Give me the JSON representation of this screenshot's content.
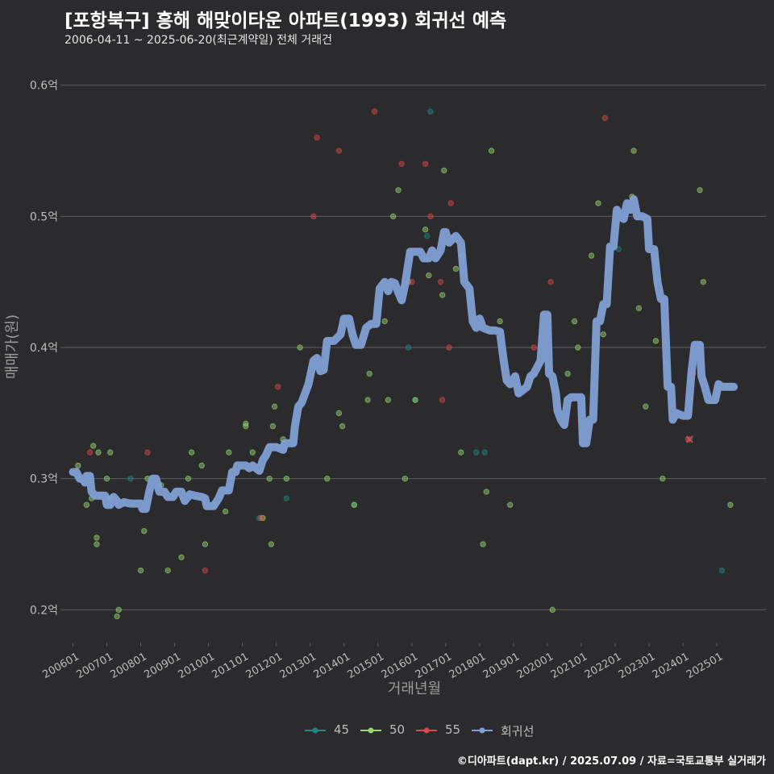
{
  "title": "[포항북구] 흥해 해맞이타운 아파트(1993) 회귀선 예측",
  "subtitle": "2006-04-11 ~ 2025-06-20(최근계약일) 전체 거래건",
  "footer": "©디아파트(dapt.kr) / 2025.07.09 / 자료=국토교통부 실거래가",
  "colors": {
    "s45": "#1f8a82",
    "s50": "#9bd86e",
    "s55": "#e0474c",
    "trend": "#7f9fd4",
    "grid": "#5c5c5c",
    "text": "#bdbdbd"
  },
  "chart_data": {
    "type": "scatter",
    "xlabel": "거래년월",
    "ylabel": "매매가(원)",
    "x_unit": "year (decimal)",
    "xlim": [
      2005.75,
      2026.45
    ],
    "ylim": [
      0.175,
      0.625
    ],
    "yticks": [
      {
        "value": 0.2,
        "label": "0.2억"
      },
      {
        "value": 0.3,
        "label": "0.3억"
      },
      {
        "value": 0.4,
        "label": "0.4억"
      },
      {
        "value": 0.5,
        "label": "0.5억"
      },
      {
        "value": 0.6,
        "label": "0.6억"
      }
    ],
    "xticks": [
      {
        "value": 2006.0,
        "label": "200601"
      },
      {
        "value": 2007.0,
        "label": "200701"
      },
      {
        "value": 2008.0,
        "label": "200801"
      },
      {
        "value": 2009.0,
        "label": "200901"
      },
      {
        "value": 2010.0,
        "label": "201001"
      },
      {
        "value": 2011.0,
        "label": "201101"
      },
      {
        "value": 2012.0,
        "label": "201201"
      },
      {
        "value": 2013.0,
        "label": "201301"
      },
      {
        "value": 2014.0,
        "label": "201401"
      },
      {
        "value": 2015.0,
        "label": "201501"
      },
      {
        "value": 2016.0,
        "label": "201601"
      },
      {
        "value": 2017.0,
        "label": "201701"
      },
      {
        "value": 2018.0,
        "label": "201801"
      },
      {
        "value": 2019.0,
        "label": "201901"
      },
      {
        "value": 2020.0,
        "label": "202001"
      },
      {
        "value": 2021.0,
        "label": "202101"
      },
      {
        "value": 2022.0,
        "label": "202201"
      },
      {
        "value": 2023.0,
        "label": "202301"
      },
      {
        "value": 2024.0,
        "label": "202401"
      },
      {
        "value": 2025.0,
        "label": "202501"
      }
    ],
    "legend": [
      "45",
      "50",
      "55",
      "회귀선"
    ],
    "legend_position": "bottom",
    "series": [
      {
        "name": "45",
        "points": [
          [
            2007.7,
            0.3
          ],
          [
            2011.5,
            0.27
          ],
          [
            2012.3,
            0.285
          ],
          [
            2014.3,
            0.28
          ],
          [
            2015.9,
            0.4
          ],
          [
            2016.1,
            0.36
          ],
          [
            2016.45,
            0.485
          ],
          [
            2016.55,
            0.58
          ],
          [
            2017.9,
            0.32
          ],
          [
            2018.15,
            0.32
          ],
          [
            2022.1,
            0.475
          ],
          [
            2024.2,
            0.33
          ],
          [
            2025.15,
            0.23
          ]
        ]
      },
      {
        "name": "50",
        "points": [
          [
            2006.15,
            0.31
          ],
          [
            2006.4,
            0.28
          ],
          [
            2006.55,
            0.285
          ],
          [
            2006.6,
            0.325
          ],
          [
            2006.7,
            0.25
          ],
          [
            2006.7,
            0.255
          ],
          [
            2006.75,
            0.32
          ],
          [
            2007.0,
            0.3
          ],
          [
            2007.1,
            0.32
          ],
          [
            2007.3,
            0.195
          ],
          [
            2007.35,
            0.2
          ],
          [
            2007.1,
            0.285
          ],
          [
            2008.0,
            0.23
          ],
          [
            2008.1,
            0.26
          ],
          [
            2008.2,
            0.3
          ],
          [
            2008.6,
            0.295
          ],
          [
            2008.8,
            0.23
          ],
          [
            2009.2,
            0.24
          ],
          [
            2009.4,
            0.3
          ],
          [
            2009.5,
            0.32
          ],
          [
            2009.8,
            0.31
          ],
          [
            2009.9,
            0.25
          ],
          [
            2010.2,
            0.28
          ],
          [
            2010.5,
            0.275
          ],
          [
            2010.6,
            0.32
          ],
          [
            2011.1,
            0.34
          ],
          [
            2011.1,
            0.342
          ],
          [
            2011.3,
            0.32
          ],
          [
            2011.6,
            0.27
          ],
          [
            2011.8,
            0.3
          ],
          [
            2011.85,
            0.25
          ],
          [
            2011.9,
            0.34
          ],
          [
            2011.95,
            0.355
          ],
          [
            2012.2,
            0.33
          ],
          [
            2012.3,
            0.3
          ],
          [
            2012.7,
            0.4
          ],
          [
            2013.5,
            0.3
          ],
          [
            2013.85,
            0.35
          ],
          [
            2013.95,
            0.34
          ],
          [
            2014.3,
            0.28
          ],
          [
            2014.7,
            0.36
          ],
          [
            2014.75,
            0.38
          ],
          [
            2015.2,
            0.42
          ],
          [
            2015.3,
            0.36
          ],
          [
            2015.45,
            0.5
          ],
          [
            2015.6,
            0.52
          ],
          [
            2015.8,
            0.3
          ],
          [
            2015.9,
            0.45
          ],
          [
            2016.1,
            0.36
          ],
          [
            2016.4,
            0.49
          ],
          [
            2016.5,
            0.455
          ],
          [
            2016.9,
            0.44
          ],
          [
            2016.95,
            0.535
          ],
          [
            2017.3,
            0.46
          ],
          [
            2017.5,
            0.47
          ],
          [
            2017.45,
            0.32
          ],
          [
            2018.1,
            0.25
          ],
          [
            2018.2,
            0.29
          ],
          [
            2018.35,
            0.55
          ],
          [
            2018.6,
            0.42
          ],
          [
            2018.9,
            0.28
          ],
          [
            2020.15,
            0.2
          ],
          [
            2020.6,
            0.38
          ],
          [
            2020.8,
            0.42
          ],
          [
            2020.9,
            0.4
          ],
          [
            2021.3,
            0.47
          ],
          [
            2021.5,
            0.51
          ],
          [
            2021.65,
            0.41
          ],
          [
            2022.5,
            0.515
          ],
          [
            2022.55,
            0.55
          ],
          [
            2022.7,
            0.43
          ],
          [
            2022.9,
            0.355
          ],
          [
            2023.2,
            0.405
          ],
          [
            2023.4,
            0.3
          ],
          [
            2024.5,
            0.52
          ],
          [
            2024.6,
            0.45
          ],
          [
            2025.4,
            0.28
          ]
        ]
      },
      {
        "name": "55",
        "points": [
          [
            2006.5,
            0.32
          ],
          [
            2008.2,
            0.32
          ],
          [
            2009.9,
            0.23
          ],
          [
            2011.55,
            0.27
          ],
          [
            2012.05,
            0.37
          ],
          [
            2013.1,
            0.5
          ],
          [
            2013.2,
            0.56
          ],
          [
            2013.85,
            0.55
          ],
          [
            2014.9,
            0.58
          ],
          [
            2015.7,
            0.54
          ],
          [
            2016.0,
            0.45
          ],
          [
            2016.4,
            0.54
          ],
          [
            2016.55,
            0.5
          ],
          [
            2016.85,
            0.45
          ],
          [
            2016.9,
            0.36
          ],
          [
            2017.1,
            0.4
          ],
          [
            2017.15,
            0.51
          ],
          [
            2019.6,
            0.4
          ],
          [
            2020.1,
            0.45
          ],
          [
            2021.7,
            0.575
          ],
          [
            2024.15,
            0.33
          ],
          [
            2024.3,
            0.38
          ]
        ]
      }
    ],
    "trend": [
      [
        2006.0,
        0.305
      ],
      [
        2006.1,
        0.305
      ],
      [
        2006.2,
        0.3
      ],
      [
        2006.3,
        0.3
      ],
      [
        2006.35,
        0.297
      ],
      [
        2006.4,
        0.302
      ],
      [
        2006.5,
        0.302
      ],
      [
        2006.55,
        0.29
      ],
      [
        2006.65,
        0.287
      ],
      [
        2006.8,
        0.287
      ],
      [
        2006.95,
        0.287
      ],
      [
        2007.0,
        0.28
      ],
      [
        2007.1,
        0.28
      ],
      [
        2007.2,
        0.286
      ],
      [
        2007.3,
        0.283
      ],
      [
        2007.35,
        0.28
      ],
      [
        2007.5,
        0.282
      ],
      [
        2007.7,
        0.281
      ],
      [
        2008.0,
        0.281
      ],
      [
        2008.05,
        0.277
      ],
      [
        2008.15,
        0.277
      ],
      [
        2008.25,
        0.29
      ],
      [
        2008.35,
        0.3
      ],
      [
        2008.45,
        0.3
      ],
      [
        2008.55,
        0.29
      ],
      [
        2008.7,
        0.29
      ],
      [
        2008.8,
        0.286
      ],
      [
        2008.95,
        0.286
      ],
      [
        2009.05,
        0.29
      ],
      [
        2009.2,
        0.29
      ],
      [
        2009.3,
        0.283
      ],
      [
        2009.45,
        0.288
      ],
      [
        2009.6,
        0.287
      ],
      [
        2009.8,
        0.286
      ],
      [
        2009.9,
        0.285
      ],
      [
        2009.95,
        0.279
      ],
      [
        2010.15,
        0.279
      ],
      [
        2010.3,
        0.285
      ],
      [
        2010.4,
        0.291
      ],
      [
        2010.6,
        0.291
      ],
      [
        2010.7,
        0.305
      ],
      [
        2010.8,
        0.305
      ],
      [
        2010.85,
        0.31
      ],
      [
        2011.1,
        0.31
      ],
      [
        2011.2,
        0.308
      ],
      [
        2011.3,
        0.31
      ],
      [
        2011.5,
        0.306
      ],
      [
        2011.6,
        0.314
      ],
      [
        2011.7,
        0.318
      ],
      [
        2011.8,
        0.324
      ],
      [
        2012.0,
        0.324
      ],
      [
        2012.2,
        0.322
      ],
      [
        2012.25,
        0.327
      ],
      [
        2012.5,
        0.327
      ],
      [
        2012.55,
        0.34
      ],
      [
        2012.65,
        0.355
      ],
      [
        2012.75,
        0.358
      ],
      [
        2012.95,
        0.372
      ],
      [
        2013.1,
        0.39
      ],
      [
        2013.2,
        0.392
      ],
      [
        2013.3,
        0.382
      ],
      [
        2013.4,
        0.383
      ],
      [
        2013.5,
        0.405
      ],
      [
        2013.7,
        0.405
      ],
      [
        2013.9,
        0.41
      ],
      [
        2014.0,
        0.422
      ],
      [
        2014.15,
        0.422
      ],
      [
        2014.25,
        0.41
      ],
      [
        2014.35,
        0.402
      ],
      [
        2014.5,
        0.402
      ],
      [
        2014.65,
        0.415
      ],
      [
        2014.8,
        0.418
      ],
      [
        2014.95,
        0.418
      ],
      [
        2015.05,
        0.445
      ],
      [
        2015.2,
        0.45
      ],
      [
        2015.3,
        0.443
      ],
      [
        2015.4,
        0.45
      ],
      [
        2015.5,
        0.449
      ],
      [
        2015.6,
        0.442
      ],
      [
        2015.7,
        0.436
      ],
      [
        2015.8,
        0.448
      ],
      [
        2015.95,
        0.473
      ],
      [
        2016.1,
        0.473
      ],
      [
        2016.25,
        0.473
      ],
      [
        2016.35,
        0.468
      ],
      [
        2016.5,
        0.468
      ],
      [
        2016.6,
        0.474
      ],
      [
        2016.7,
        0.468
      ],
      [
        2016.85,
        0.474
      ],
      [
        2016.95,
        0.488
      ],
      [
        2017.0,
        0.488
      ],
      [
        2017.1,
        0.48
      ],
      [
        2017.3,
        0.485
      ],
      [
        2017.45,
        0.48
      ],
      [
        2017.55,
        0.45
      ],
      [
        2017.7,
        0.445
      ],
      [
        2017.8,
        0.42
      ],
      [
        2017.9,
        0.415
      ],
      [
        2018.0,
        0.422
      ],
      [
        2018.1,
        0.415
      ],
      [
        2018.3,
        0.413
      ],
      [
        2018.45,
        0.413
      ],
      [
        2018.6,
        0.412
      ],
      [
        2018.7,
        0.392
      ],
      [
        2018.8,
        0.375
      ],
      [
        2018.9,
        0.372
      ],
      [
        2019.05,
        0.378
      ],
      [
        2019.15,
        0.365
      ],
      [
        2019.3,
        0.368
      ],
      [
        2019.4,
        0.37
      ],
      [
        2019.5,
        0.378
      ],
      [
        2019.6,
        0.38
      ],
      [
        2019.7,
        0.385
      ],
      [
        2019.8,
        0.39
      ],
      [
        2019.9,
        0.425
      ],
      [
        2020.0,
        0.425
      ],
      [
        2020.05,
        0.38
      ],
      [
        2020.15,
        0.378
      ],
      [
        2020.25,
        0.365
      ],
      [
        2020.3,
        0.352
      ],
      [
        2020.4,
        0.345
      ],
      [
        2020.5,
        0.341
      ],
      [
        2020.6,
        0.36
      ],
      [
        2020.7,
        0.362
      ],
      [
        2020.95,
        0.362
      ],
      [
        2021.0,
        0.362
      ],
      [
        2021.05,
        0.327
      ],
      [
        2021.15,
        0.327
      ],
      [
        2021.25,
        0.345
      ],
      [
        2021.35,
        0.345
      ],
      [
        2021.45,
        0.42
      ],
      [
        2021.55,
        0.42
      ],
      [
        2021.65,
        0.433
      ],
      [
        2021.75,
        0.433
      ],
      [
        2021.85,
        0.477
      ],
      [
        2021.95,
        0.477
      ],
      [
        2022.05,
        0.505
      ],
      [
        2022.15,
        0.5
      ],
      [
        2022.25,
        0.498
      ],
      [
        2022.35,
        0.51
      ],
      [
        2022.45,
        0.505
      ],
      [
        2022.55,
        0.513
      ],
      [
        2022.65,
        0.5
      ],
      [
        2022.8,
        0.5
      ],
      [
        2022.95,
        0.498
      ],
      [
        2023.0,
        0.475
      ],
      [
        2023.15,
        0.475
      ],
      [
        2023.25,
        0.45
      ],
      [
        2023.35,
        0.437
      ],
      [
        2023.45,
        0.437
      ],
      [
        2023.55,
        0.37
      ],
      [
        2023.65,
        0.37
      ],
      [
        2023.7,
        0.345
      ],
      [
        2023.8,
        0.35
      ],
      [
        2024.0,
        0.348
      ],
      [
        2024.15,
        0.348
      ],
      [
        2024.25,
        0.38
      ],
      [
        2024.35,
        0.402
      ],
      [
        2024.5,
        0.402
      ],
      [
        2024.55,
        0.378
      ],
      [
        2024.65,
        0.37
      ],
      [
        2024.75,
        0.36
      ],
      [
        2024.95,
        0.36
      ],
      [
        2025.05,
        0.372
      ],
      [
        2025.15,
        0.37
      ],
      [
        2025.5,
        0.37
      ]
    ]
  }
}
